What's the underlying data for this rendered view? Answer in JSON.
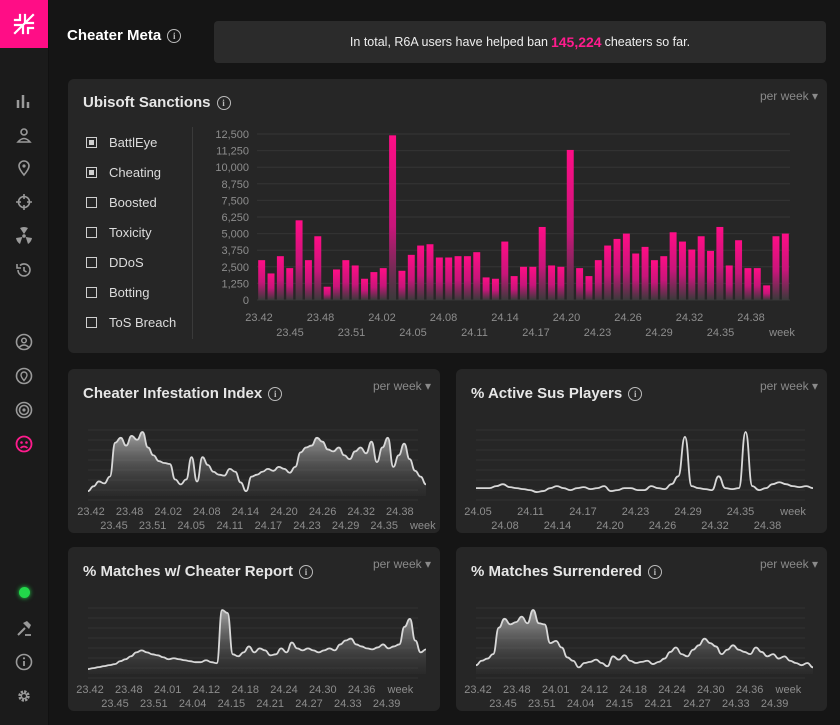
{
  "header": {
    "title": "Cheater Meta",
    "banner_prefix": "In total, R6A users have helped ban",
    "banner_count": "145,224",
    "banner_suffix": "cheaters so far."
  },
  "sanctions": {
    "title": "Ubisoft Sanctions",
    "period": "per week ▾",
    "filters": [
      {
        "label": "BattlEye",
        "checked": true
      },
      {
        "label": "Cheating",
        "checked": true
      },
      {
        "label": "Boosted",
        "checked": false
      },
      {
        "label": "Toxicity",
        "checked": false
      },
      {
        "label": "DDoS",
        "checked": false
      },
      {
        "label": "Botting",
        "checked": false
      },
      {
        "label": "ToS Breach",
        "checked": false
      }
    ]
  },
  "infestation": {
    "title": "Cheater Infestation Index",
    "period": "per week ▾"
  },
  "sus": {
    "title": "% Active Sus Players",
    "period": "per week ▾"
  },
  "reports": {
    "title": "% Matches w/ Cheater Report",
    "period": "per week ▾"
  },
  "surrendered": {
    "title": "% Matches Surrendered",
    "period": "per week ▾"
  },
  "chart_data": [
    {
      "type": "bar",
      "title": "Ubisoft Sanctions",
      "ylim": [
        0,
        12500
      ],
      "yticks": [
        "12,500",
        "11,250",
        "10,000",
        "8,750",
        "7,500",
        "6,250",
        "5,000",
        "3,750",
        "2,500",
        "1,250",
        "0"
      ],
      "xticks_row1": [
        "23.42",
        "23.48",
        "24.02",
        "24.08",
        "24.14",
        "24.20",
        "24.26",
        "24.32",
        "24.38"
      ],
      "xticks_row2": [
        "23.45",
        "23.51",
        "24.05",
        "24.11",
        "24.17",
        "24.23",
        "24.29",
        "24.35",
        "week"
      ],
      "series": [
        {
          "name": "BattlEye",
          "values": [
            3000,
            2000,
            3300,
            2400,
            6000,
            3000,
            4800,
            1000,
            2300,
            3000,
            2600,
            1600,
            2100,
            2400,
            12400,
            2200,
            3400,
            4100,
            4200,
            3200,
            3200,
            3300,
            3300,
            3600,
            1700,
            1600,
            4400,
            1800,
            2500,
            2500,
            5500,
            2600,
            2500,
            11300,
            2400,
            1800,
            3000,
            4100,
            4600,
            5000,
            3500,
            4000,
            3000,
            3300,
            5100,
            4400,
            3800,
            4800,
            3700,
            5500,
            2600,
            4500,
            2400,
            2400,
            1100,
            4800,
            5000
          ]
        }
      ]
    },
    {
      "type": "area",
      "title": "Cheater Infestation Index",
      "xticks_row1": [
        "23.42",
        "23.48",
        "24.02",
        "24.08",
        "24.14",
        "24.20",
        "24.26",
        "24.32",
        "24.38"
      ],
      "xticks_row2": [
        "23.45",
        "23.51",
        "24.05",
        "24.11",
        "24.17",
        "24.23",
        "24.29",
        "24.35",
        "week"
      ],
      "values": [
        5,
        10,
        15,
        13,
        20,
        55,
        60,
        52,
        62,
        58,
        66,
        50,
        42,
        36,
        34,
        33,
        17,
        12,
        17,
        40,
        15,
        40,
        32,
        25,
        22,
        21,
        28,
        25,
        14,
        5,
        20,
        22,
        25,
        28,
        26,
        30,
        28,
        24,
        30,
        45,
        50,
        52,
        60,
        56,
        48,
        46,
        50,
        42,
        38,
        46,
        50,
        44,
        56,
        35,
        50,
        60,
        30,
        42,
        54,
        38,
        26,
        20,
        12
      ]
    },
    {
      "type": "line",
      "title": "% Active Sus Players",
      "xticks_row1": [
        "24.05",
        "24.11",
        "24.17",
        "24.23",
        "24.29",
        "24.35",
        "week"
      ],
      "xticks_row2": [
        "24.08",
        "24.14",
        "24.20",
        "24.26",
        "24.32",
        "24.38"
      ],
      "values": [
        8,
        8,
        8,
        10,
        12,
        9,
        8,
        7,
        6,
        4,
        5,
        8,
        10,
        8,
        6,
        8,
        9,
        7,
        8,
        10,
        5,
        6,
        8,
        8,
        6,
        6,
        10,
        8,
        7,
        12,
        20,
        60,
        10,
        8,
        7,
        6,
        20,
        8,
        7,
        8,
        65,
        10,
        6,
        8,
        12,
        14,
        12,
        10,
        9,
        10,
        8
      ]
    },
    {
      "type": "area",
      "title": "% Matches w/ Cheater Report",
      "xticks_row1": [
        "23.42",
        "23.48",
        "24.01",
        "24.12",
        "24.18",
        "24.24",
        "24.30",
        "24.36",
        "week"
      ],
      "xticks_row2": [
        "23.45",
        "23.51",
        "24.04",
        "24.15",
        "24.21",
        "24.27",
        "24.33",
        "24.39"
      ],
      "values": [
        5,
        6,
        7,
        8,
        9,
        10,
        13,
        15,
        18,
        22,
        24,
        22,
        20,
        19,
        17,
        15,
        16,
        15,
        14,
        13,
        12,
        12,
        14,
        12,
        11,
        65,
        62,
        20,
        18,
        22,
        28,
        22,
        26,
        24,
        19,
        20,
        26,
        22,
        32,
        26,
        24,
        26,
        24,
        22,
        24,
        26,
        24,
        30,
        34,
        36,
        30,
        28,
        26,
        25,
        27,
        30,
        26,
        28,
        30,
        48,
        56,
        34,
        22,
        25
      ]
    },
    {
      "type": "area",
      "title": "% Matches Surrendered",
      "xticks_row1": [
        "23.42",
        "23.48",
        "24.01",
        "24.12",
        "24.18",
        "24.24",
        "24.30",
        "24.36",
        "week"
      ],
      "xticks_row2": [
        "23.45",
        "23.51",
        "24.04",
        "24.15",
        "24.21",
        "24.27",
        "24.33",
        "24.39"
      ],
      "values": [
        8,
        12,
        14,
        18,
        42,
        50,
        45,
        47,
        52,
        46,
        58,
        46,
        45,
        28,
        30,
        24,
        15,
        12,
        6,
        10,
        11,
        13,
        10,
        7,
        16,
        13,
        17,
        12,
        10,
        11,
        12,
        9,
        11,
        14,
        20,
        24,
        18,
        16,
        22,
        26,
        32,
        28,
        25,
        18,
        22,
        26,
        22,
        20,
        18,
        24,
        20,
        16,
        18,
        14,
        16,
        12,
        10,
        8,
        10,
        6
      ]
    }
  ]
}
